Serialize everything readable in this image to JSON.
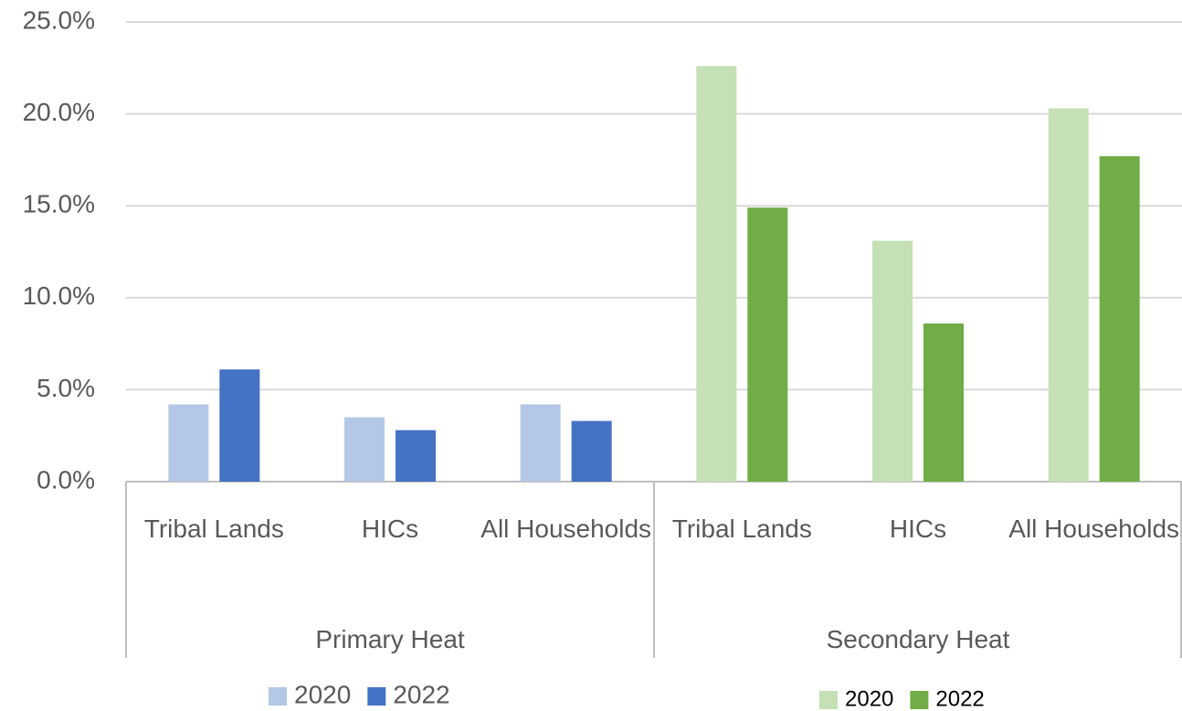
{
  "chart_data": {
    "type": "bar",
    "ylim": [
      0,
      25
    ],
    "yticks": [
      {
        "value": 0,
        "label": "0.0%"
      },
      {
        "value": 5,
        "label": "5.0%"
      },
      {
        "value": 10,
        "label": "10.0%"
      },
      {
        "value": 15,
        "label": "15.0%"
      },
      {
        "value": 20,
        "label": "20.0%"
      },
      {
        "value": 25,
        "label": "25.0%"
      }
    ],
    "grid": true,
    "groups": [
      {
        "name": "Primary Heat",
        "categories": [
          "Tribal Lands",
          "HICs",
          "All Households"
        ],
        "series": [
          {
            "name": "2020",
            "color": "#b4c7e7",
            "values": [
              4.2,
              3.5,
              4.2
            ]
          },
          {
            "name": "2022",
            "color": "#4472c4",
            "values": [
              6.1,
              2.8,
              3.3
            ]
          }
        ]
      },
      {
        "name": "Secondary Heat",
        "categories": [
          "Tribal Lands",
          "HICs",
          "All Households"
        ],
        "series": [
          {
            "name": "2020",
            "color": "#c5e0b4",
            "values": [
              22.6,
              13.1,
              20.3
            ]
          },
          {
            "name": "2022",
            "color": "#70ad47",
            "values": [
              14.9,
              8.6,
              17.7
            ]
          }
        ]
      }
    ]
  }
}
